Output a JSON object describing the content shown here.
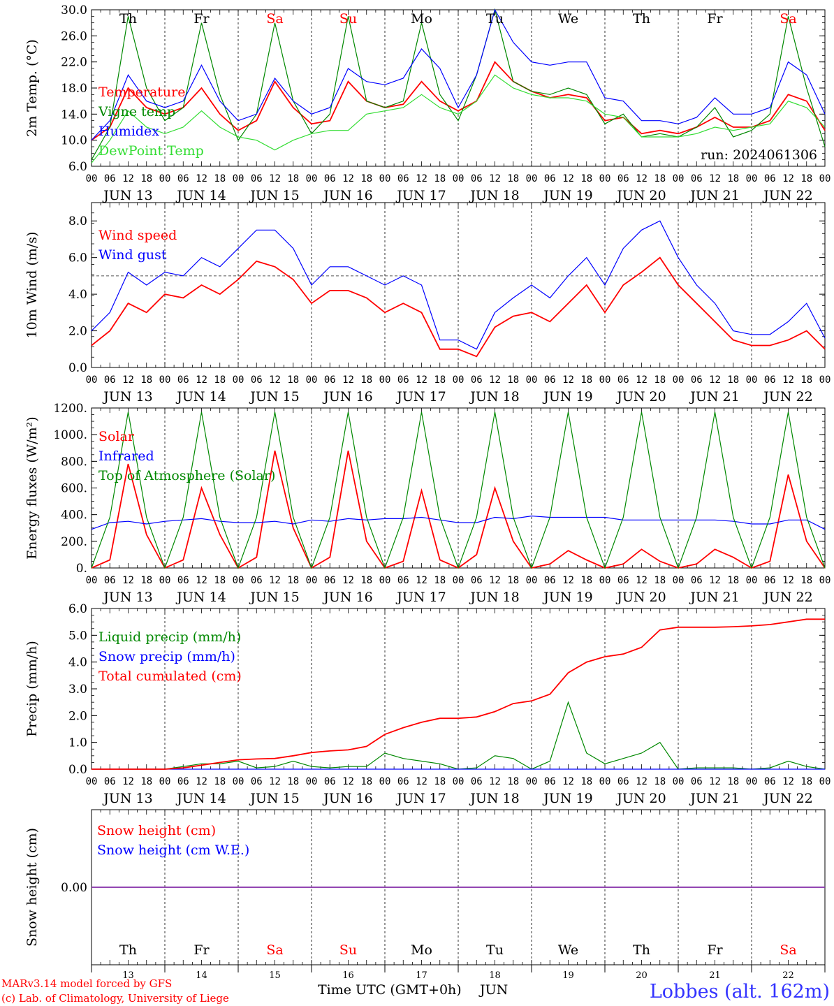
{
  "days_header": [
    "Th",
    "Fr",
    "Sa",
    "Su",
    "Mo",
    "Tu",
    "We",
    "Th",
    "Fr",
    "Sa"
  ],
  "weekend_indices": [
    2,
    3,
    9
  ],
  "date_labels": [
    "JUN 13",
    "JUN 14",
    "JUN 15",
    "JUN 16",
    "JUN 17",
    "JUN 18",
    "JUN 19",
    "JUN 20",
    "JUN 21",
    "JUN 22"
  ],
  "hour_ticks": [
    "00",
    "06",
    "12",
    "18"
  ],
  "hour_tick_end": "00",
  "bottom_day_numbers": [
    "13",
    "14",
    "15",
    "16",
    "17",
    "18",
    "19",
    "20",
    "21",
    "22"
  ],
  "footer": {
    "credit_line1": "MARv3.14 model forced by GFS",
    "credit_line2": "(c) Lab. of Climatology, University of Liege",
    "time_axis_label": "Time UTC (GMT+0h)",
    "month_label": "JUN",
    "station": "Lobbes (alt. 162m)"
  },
  "colors": {
    "red": "#ff0000",
    "green": "#008800",
    "blue": "#0000ff",
    "light_green": "#33dd33",
    "purple": "#8833aa"
  },
  "chart_data": [
    {
      "type": "line",
      "ylabel": "2m Temp. (°C)",
      "ylim": [
        6,
        30
      ],
      "yticks": [
        "6.0",
        "10.0",
        "14.0",
        "18.0",
        "22.0",
        "26.0",
        "30.0"
      ],
      "annotation": "run: 2024061306",
      "x_hours": [
        0,
        6,
        12,
        18,
        24,
        30,
        36,
        42,
        48,
        54,
        60,
        66,
        72,
        78,
        84,
        90,
        96,
        102,
        108,
        114,
        120,
        126,
        132,
        138,
        144,
        150,
        156,
        162,
        168,
        174,
        180,
        186,
        192,
        198,
        204,
        210,
        216,
        222,
        228,
        234,
        240
      ],
      "series": [
        {
          "name": "Temperature",
          "color": "red",
          "values": [
            10,
            12,
            18,
            15,
            14,
            15,
            18,
            14,
            11.5,
            13,
            19,
            15,
            12.5,
            13,
            19,
            16,
            15,
            15.5,
            19,
            16,
            14.5,
            16,
            22,
            19,
            17.5,
            16.5,
            17,
            16.5,
            13,
            13.5,
            11,
            11.5,
            11,
            12,
            13.5,
            12,
            12,
            13,
            17,
            16,
            11.5
          ]
        },
        {
          "name": "Vigne temp",
          "color": "green",
          "values": [
            7,
            12,
            29,
            18,
            13,
            15,
            28,
            17,
            10,
            14,
            28,
            16,
            11,
            14,
            29,
            16,
            15,
            16,
            28,
            17,
            13,
            20,
            30,
            19,
            17.5,
            17,
            18,
            17,
            12.5,
            14,
            10.5,
            11,
            10.5,
            12,
            15,
            10.5,
            11.5,
            14,
            29,
            18,
            9
          ]
        },
        {
          "name": "Humidex",
          "color": "blue",
          "values": [
            10,
            13,
            20,
            16,
            15,
            16,
            21.5,
            16,
            13,
            14,
            19.5,
            16,
            14,
            15,
            21,
            19,
            18.5,
            19.5,
            24,
            21,
            15,
            20,
            30,
            25,
            22,
            21.5,
            22,
            22,
            16.5,
            16,
            13,
            13,
            12.5,
            13.5,
            16.5,
            14,
            14,
            15,
            22,
            20,
            14
          ]
        },
        {
          "name": "DewPoint Temp",
          "color": "light_green",
          "values": [
            6.5,
            10,
            14.5,
            12,
            11,
            12,
            14.5,
            12,
            10.5,
            10,
            8.5,
            10,
            11,
            11.5,
            11.5,
            14,
            14.5,
            15,
            17,
            15,
            14,
            16,
            20,
            18,
            17,
            16.5,
            16.5,
            16,
            14,
            13.5,
            10.5,
            10.5,
            10.5,
            11,
            12,
            11.5,
            12,
            12.5,
            16,
            15,
            12
          ]
        }
      ]
    },
    {
      "type": "line",
      "ylabel": "10m Wind (m/s)",
      "ylim": [
        0,
        9
      ],
      "yticks": [
        "0.0",
        "2.0",
        "4.0",
        "6.0",
        "8.0"
      ],
      "reference_line": 5,
      "x_hours": [
        0,
        6,
        12,
        18,
        24,
        30,
        36,
        42,
        48,
        54,
        60,
        66,
        72,
        78,
        84,
        90,
        96,
        102,
        108,
        114,
        120,
        126,
        132,
        138,
        144,
        150,
        156,
        162,
        168,
        174,
        180,
        186,
        192,
        198,
        204,
        210,
        216,
        222,
        228,
        234,
        240
      ],
      "series": [
        {
          "name": "Wind speed",
          "color": "red",
          "values": [
            1.2,
            2,
            3.5,
            3,
            4,
            3.8,
            4.5,
            4,
            4.8,
            5.8,
            5.5,
            4.8,
            3.5,
            4.2,
            4.2,
            3.8,
            3,
            3.5,
            3,
            1,
            1,
            0.6,
            2.2,
            2.8,
            3,
            2.5,
            3.5,
            4.5,
            3,
            4.5,
            5.2,
            6,
            4.5,
            3.5,
            2.5,
            1.5,
            1.2,
            1.2,
            1.5,
            2,
            1
          ]
        },
        {
          "name": "Wind gust",
          "color": "blue",
          "values": [
            2,
            3,
            5.2,
            4.5,
            5.2,
            5,
            6,
            5.5,
            6.5,
            7.5,
            7.5,
            6.5,
            4.5,
            5.5,
            5.5,
            5,
            4.5,
            5,
            4.5,
            1.5,
            1.5,
            1,
            3,
            3.8,
            4.5,
            3.8,
            5,
            6,
            4.5,
            6.5,
            7.5,
            8,
            6,
            4.5,
            3.5,
            2,
            1.8,
            1.8,
            2.5,
            3.5,
            1.6
          ]
        }
      ]
    },
    {
      "type": "line",
      "ylabel": "Energy fluxes (W/m²)",
      "ylim": [
        0,
        1200
      ],
      "yticks": [
        "0.",
        "200.",
        "400.",
        "600.",
        "800.",
        "1000.",
        "1200."
      ],
      "x_hours": [
        0,
        6,
        12,
        18,
        24,
        30,
        36,
        42,
        48,
        54,
        60,
        66,
        72,
        78,
        84,
        90,
        96,
        102,
        108,
        114,
        120,
        126,
        132,
        138,
        144,
        150,
        156,
        162,
        168,
        174,
        180,
        186,
        192,
        198,
        204,
        210,
        216,
        222,
        228,
        234,
        240
      ],
      "series": [
        {
          "name": "Solar",
          "color": "red",
          "values": [
            0,
            60,
            780,
            250,
            0,
            60,
            600,
            250,
            0,
            80,
            880,
            300,
            0,
            80,
            880,
            200,
            0,
            50,
            580,
            60,
            0,
            100,
            600,
            200,
            0,
            30,
            130,
            60,
            0,
            30,
            140,
            50,
            0,
            30,
            140,
            80,
            0,
            50,
            700,
            200,
            0
          ]
        },
        {
          "name": "Infrared",
          "color": "blue",
          "values": [
            290,
            340,
            350,
            330,
            350,
            360,
            370,
            350,
            340,
            340,
            350,
            330,
            360,
            350,
            370,
            360,
            370,
            370,
            380,
            360,
            340,
            340,
            380,
            370,
            390,
            380,
            380,
            380,
            380,
            360,
            360,
            360,
            360,
            360,
            360,
            350,
            330,
            330,
            360,
            360,
            290
          ]
        },
        {
          "name": "Top of Atmosphere (Solar)",
          "color": "green",
          "values": [
            0,
            380,
            1170,
            380,
            0,
            380,
            1170,
            380,
            0,
            380,
            1170,
            380,
            0,
            380,
            1170,
            380,
            0,
            380,
            1170,
            380,
            0,
            380,
            1170,
            380,
            0,
            380,
            1170,
            380,
            0,
            380,
            1170,
            380,
            0,
            380,
            1170,
            380,
            0,
            380,
            1170,
            380,
            0
          ]
        }
      ]
    },
    {
      "type": "line",
      "ylabel": "Precip (mm/h)",
      "ylim": [
        0,
        6
      ],
      "yticks": [
        "0.0",
        "1.0",
        "2.0",
        "3.0",
        "4.0",
        "5.0",
        "6.0"
      ],
      "x_hours": [
        0,
        6,
        12,
        18,
        24,
        30,
        36,
        42,
        48,
        54,
        60,
        66,
        72,
        78,
        84,
        90,
        96,
        102,
        108,
        114,
        120,
        126,
        132,
        138,
        144,
        150,
        156,
        162,
        168,
        174,
        180,
        186,
        192,
        198,
        204,
        210,
        216,
        222,
        228,
        234,
        240
      ],
      "series": [
        {
          "name": "Liquid precip (mm/h)",
          "color": "green",
          "values": [
            0,
            0,
            0,
            0,
            0,
            0.1,
            0.2,
            0.2,
            0.3,
            0.05,
            0.1,
            0.3,
            0.1,
            0.05,
            0.1,
            0.1,
            0.6,
            0.4,
            0.3,
            0.2,
            0,
            0.05,
            0.5,
            0.4,
            0,
            0.3,
            2.5,
            0.6,
            0.2,
            0.4,
            0.6,
            1.0,
            0,
            0.05,
            0.05,
            0.05,
            0,
            0.05,
            0.3,
            0.1,
            0
          ]
        },
        {
          "name": "Snow precip (mm/h)",
          "color": "blue",
          "values": [
            0,
            0,
            0,
            0,
            0,
            0,
            0,
            0,
            0,
            0,
            0,
            0,
            0,
            0,
            0,
            0,
            0,
            0,
            0,
            0,
            0,
            0,
            0,
            0,
            0,
            0,
            0,
            0,
            0,
            0,
            0,
            0,
            0,
            0,
            0,
            0,
            0,
            0,
            0,
            0,
            0
          ]
        },
        {
          "name": "Total cumulated (cm)",
          "color": "red",
          "values": [
            0,
            0,
            0,
            0,
            0,
            0.05,
            0.15,
            0.25,
            0.35,
            0.38,
            0.4,
            0.5,
            0.62,
            0.68,
            0.72,
            0.85,
            1.3,
            1.55,
            1.75,
            1.9,
            1.9,
            1.95,
            2.15,
            2.45,
            2.55,
            2.8,
            3.6,
            4.0,
            4.2,
            4.3,
            4.55,
            5.2,
            5.3,
            5.3,
            5.3,
            5.32,
            5.35,
            5.4,
            5.5,
            5.6,
            5.6
          ]
        }
      ]
    },
    {
      "type": "line",
      "ylabel": "Snow height (cm)",
      "ylim": [
        -1,
        1
      ],
      "yticks": [
        "0.00"
      ],
      "x_hours": [
        0,
        240
      ],
      "series": [
        {
          "name": "Snow height (cm)",
          "color": "red",
          "values": [
            0,
            0
          ]
        },
        {
          "name": "Snow height (cm W.E.)",
          "color": "blue",
          "values": [
            0,
            0
          ]
        }
      ]
    }
  ]
}
